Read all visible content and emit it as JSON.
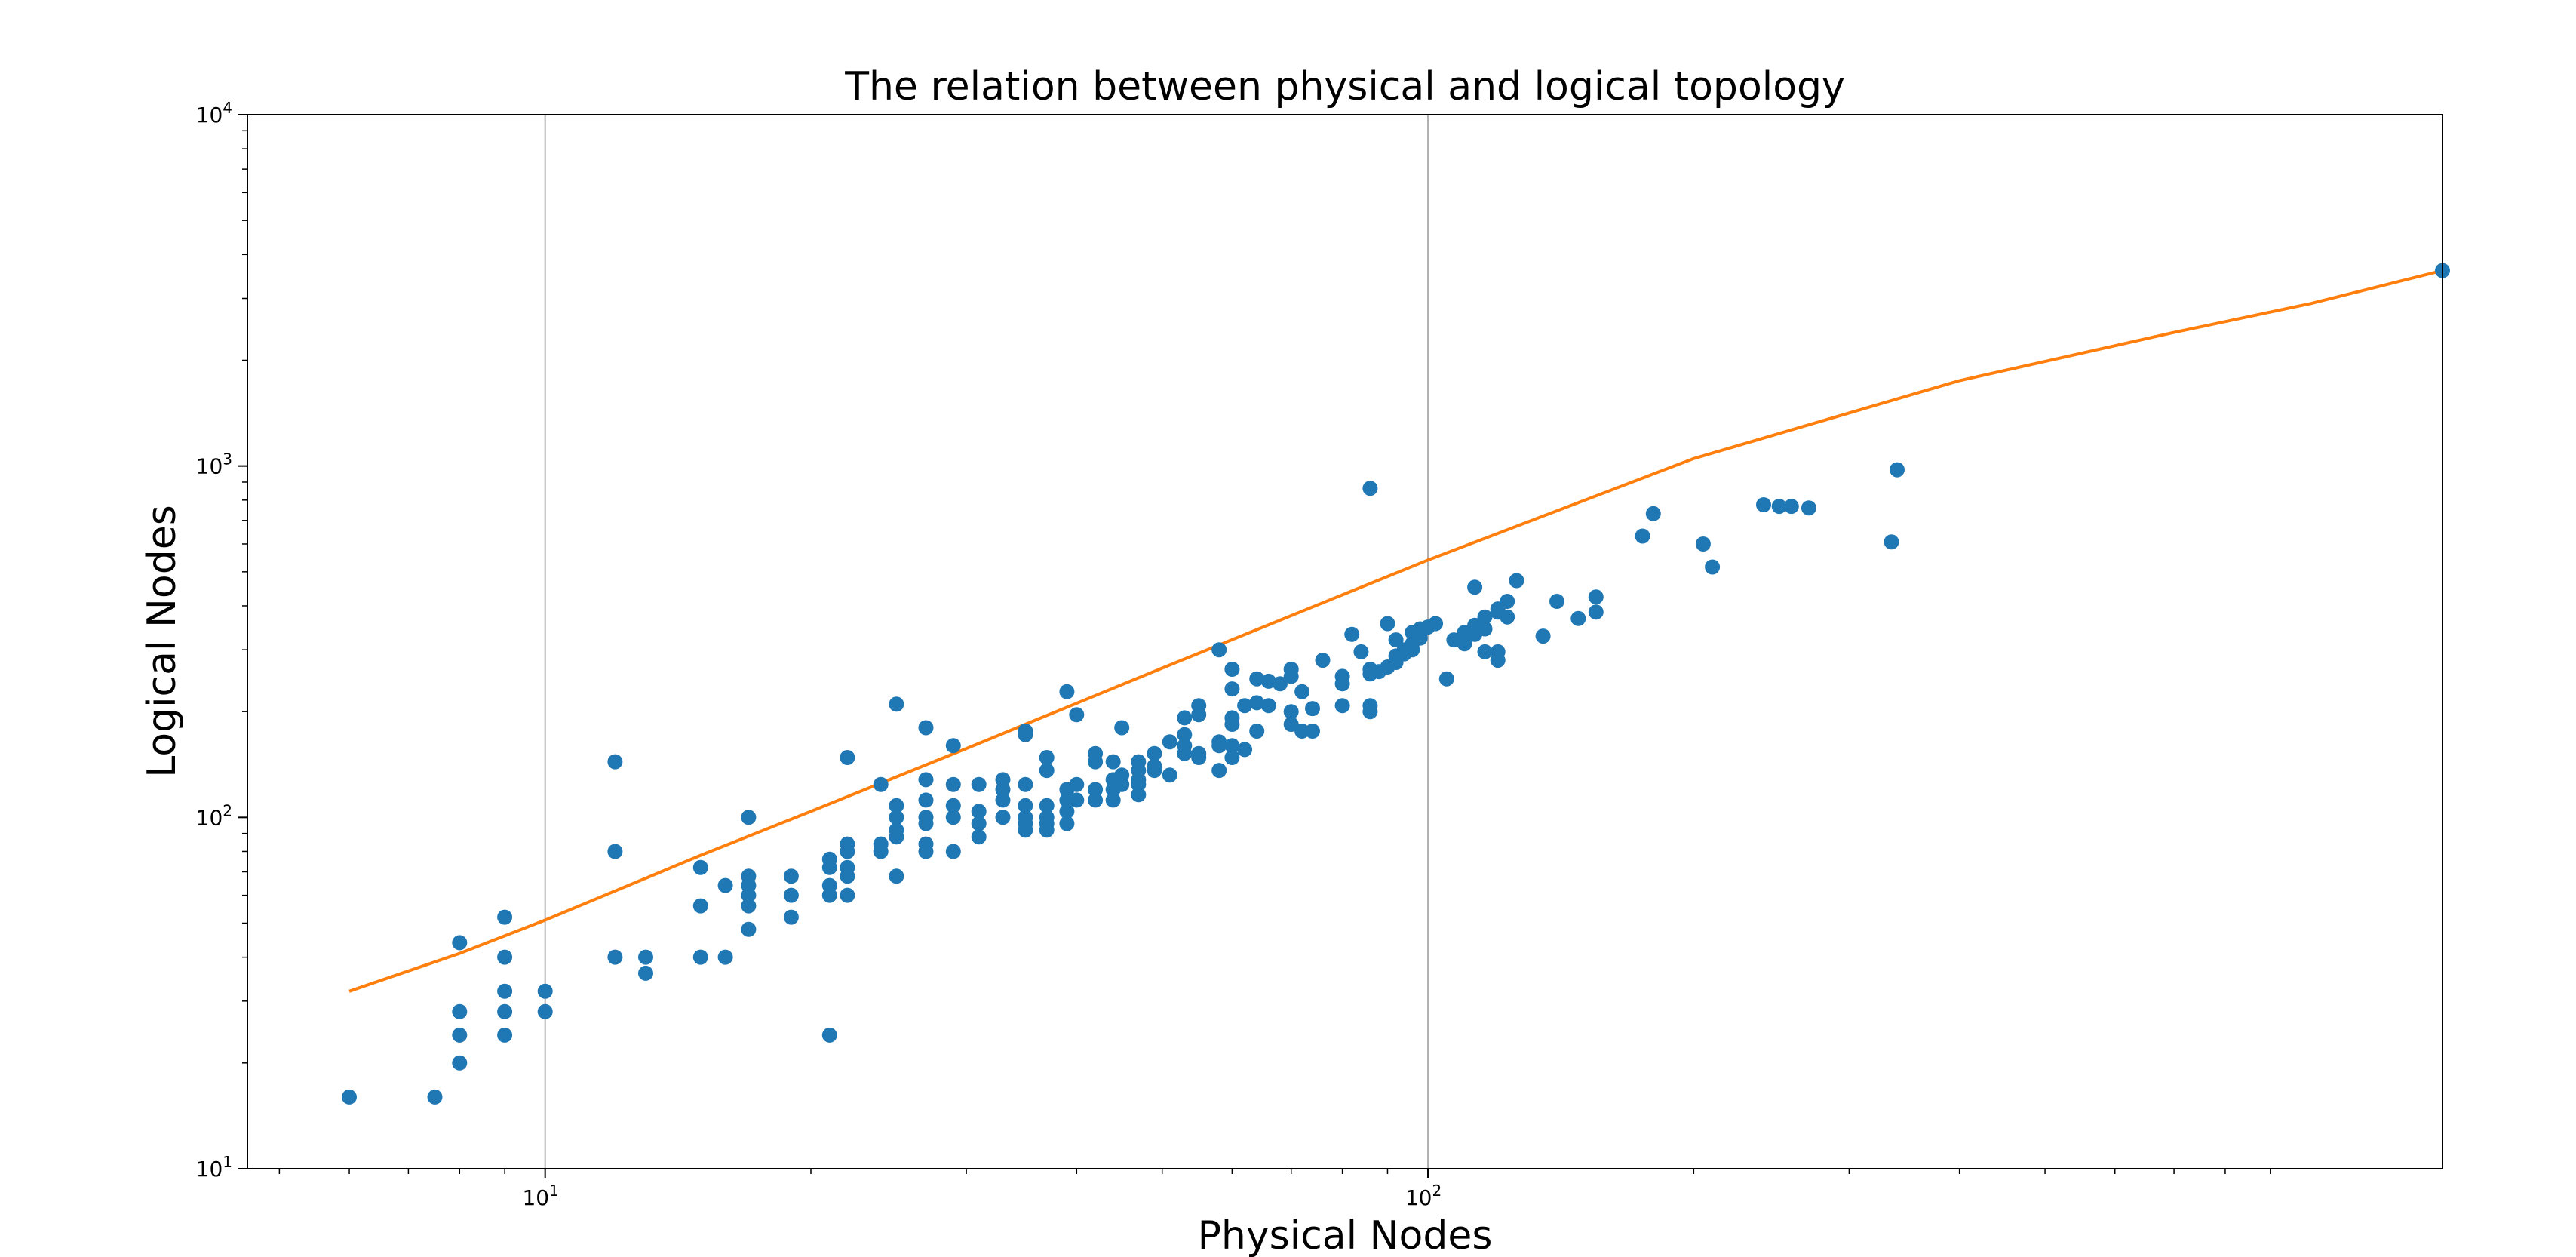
{
  "chart_data": {
    "type": "scatter",
    "title": "The relation between physical and logical topology",
    "xlabel": "Physical Nodes",
    "ylabel": "Logical Nodes",
    "xscale": "log",
    "yscale": "log",
    "xlim": [
      4.6,
      1410
    ],
    "ylim": [
      10,
      10000
    ],
    "x_ticks": [
      {
        "value": 10,
        "base": "10",
        "exp": "1"
      },
      {
        "value": 100,
        "base": "10",
        "exp": "2"
      }
    ],
    "y_ticks": [
      {
        "value": 10,
        "base": "10",
        "exp": "1"
      },
      {
        "value": 100,
        "base": "10",
        "exp": "2"
      },
      {
        "value": 1000,
        "base": "10",
        "exp": "3"
      },
      {
        "value": 10000,
        "base": "10",
        "exp": "4"
      }
    ],
    "grid": "x-major",
    "colors": {
      "points": "#1f77b4",
      "fit": "#ff7f0e"
    },
    "series": [
      {
        "type": "scatter",
        "points": [
          [
            6,
            16
          ],
          [
            7.5,
            16
          ],
          [
            8,
            44
          ],
          [
            8,
            28
          ],
          [
            8,
            24
          ],
          [
            8,
            20
          ],
          [
            9,
            52
          ],
          [
            9,
            40
          ],
          [
            9,
            32
          ],
          [
            9,
            28
          ],
          [
            9,
            24
          ],
          [
            10,
            32
          ],
          [
            10,
            28
          ],
          [
            12,
            144
          ],
          [
            12,
            80
          ],
          [
            12,
            40
          ],
          [
            13,
            40
          ],
          [
            13,
            36
          ],
          [
            15,
            72
          ],
          [
            15,
            56
          ],
          [
            15,
            40
          ],
          [
            16,
            64
          ],
          [
            16,
            40
          ],
          [
            17,
            100
          ],
          [
            17,
            68
          ],
          [
            17,
            64
          ],
          [
            17,
            60
          ],
          [
            17,
            56
          ],
          [
            17,
            48
          ],
          [
            19,
            68
          ],
          [
            19,
            60
          ],
          [
            19,
            52
          ],
          [
            21,
            76
          ],
          [
            21,
            72
          ],
          [
            21,
            64
          ],
          [
            21,
            60
          ],
          [
            21,
            24
          ],
          [
            22,
            148
          ],
          [
            22,
            84
          ],
          [
            22,
            80
          ],
          [
            22,
            72
          ],
          [
            22,
            68
          ],
          [
            22,
            60
          ],
          [
            24,
            124
          ],
          [
            24,
            84
          ],
          [
            24,
            80
          ],
          [
            25,
            210
          ],
          [
            25,
            108
          ],
          [
            25,
            100
          ],
          [
            25,
            92
          ],
          [
            25,
            88
          ],
          [
            25,
            68
          ],
          [
            27,
            180
          ],
          [
            27,
            128
          ],
          [
            27,
            112
          ],
          [
            27,
            100
          ],
          [
            27,
            96
          ],
          [
            27,
            84
          ],
          [
            27,
            80
          ],
          [
            29,
            160
          ],
          [
            29,
            124
          ],
          [
            29,
            108
          ],
          [
            29,
            100
          ],
          [
            29,
            80
          ],
          [
            31,
            124
          ],
          [
            31,
            104
          ],
          [
            31,
            96
          ],
          [
            31,
            88
          ],
          [
            33,
            128
          ],
          [
            33,
            120
          ],
          [
            33,
            112
          ],
          [
            33,
            100
          ],
          [
            35,
            176
          ],
          [
            35,
            172
          ],
          [
            35,
            124
          ],
          [
            35,
            108
          ],
          [
            35,
            100
          ],
          [
            35,
            96
          ],
          [
            35,
            92
          ],
          [
            37,
            148
          ],
          [
            37,
            136
          ],
          [
            37,
            108
          ],
          [
            37,
            100
          ],
          [
            37,
            96
          ],
          [
            37,
            92
          ],
          [
            39,
            228
          ],
          [
            39,
            120
          ],
          [
            39,
            112
          ],
          [
            39,
            104
          ],
          [
            39,
            96
          ],
          [
            40,
            196
          ],
          [
            40,
            124
          ],
          [
            40,
            112
          ],
          [
            42,
            152
          ],
          [
            42,
            144
          ],
          [
            42,
            120
          ],
          [
            42,
            112
          ],
          [
            44,
            144
          ],
          [
            44,
            128
          ],
          [
            44,
            120
          ],
          [
            44,
            112
          ],
          [
            45,
            180
          ],
          [
            45,
            132
          ],
          [
            45,
            124
          ],
          [
            47,
            144
          ],
          [
            47,
            136
          ],
          [
            47,
            128
          ],
          [
            47,
            124
          ],
          [
            47,
            116
          ],
          [
            49,
            152
          ],
          [
            49,
            140
          ],
          [
            49,
            136
          ],
          [
            51,
            164
          ],
          [
            51,
            132
          ],
          [
            53,
            192
          ],
          [
            53,
            172
          ],
          [
            53,
            160
          ],
          [
            53,
            152
          ],
          [
            55,
            208
          ],
          [
            55,
            196
          ],
          [
            55,
            152
          ],
          [
            55,
            148
          ],
          [
            58,
            300
          ],
          [
            58,
            164
          ],
          [
            58,
            160
          ],
          [
            58,
            136
          ],
          [
            60,
            264
          ],
          [
            60,
            232
          ],
          [
            60,
            192
          ],
          [
            60,
            184
          ],
          [
            60,
            160
          ],
          [
            60,
            148
          ],
          [
            62,
            208
          ],
          [
            62,
            156
          ],
          [
            64,
            248
          ],
          [
            64,
            212
          ],
          [
            64,
            176
          ],
          [
            66,
            244
          ],
          [
            66,
            208
          ],
          [
            68,
            240
          ],
          [
            70,
            264
          ],
          [
            70,
            252
          ],
          [
            70,
            200
          ],
          [
            70,
            184
          ],
          [
            72,
            228
          ],
          [
            72,
            176
          ],
          [
            74,
            176
          ],
          [
            74,
            204
          ],
          [
            76,
            280
          ],
          [
            80,
            252
          ],
          [
            80,
            240
          ],
          [
            80,
            208
          ],
          [
            82,
            332
          ],
          [
            84,
            296
          ],
          [
            86,
            864
          ],
          [
            86,
            264
          ],
          [
            86,
            256
          ],
          [
            86,
            208
          ],
          [
            86,
            200
          ],
          [
            88,
            260
          ],
          [
            90,
            356
          ],
          [
            90,
            268
          ],
          [
            92,
            320
          ],
          [
            92,
            288
          ],
          [
            92,
            276
          ],
          [
            94,
            300
          ],
          [
            94,
            292
          ],
          [
            96,
            336
          ],
          [
            96,
            312
          ],
          [
            96,
            300
          ],
          [
            98,
            344
          ],
          [
            98,
            324
          ],
          [
            100,
            348
          ],
          [
            102,
            356
          ],
          [
            105,
            248
          ],
          [
            107,
            320
          ],
          [
            110,
            312
          ],
          [
            110,
            320
          ],
          [
            110,
            336
          ],
          [
            113,
            452
          ],
          [
            113,
            352
          ],
          [
            113,
            332
          ],
          [
            116,
            372
          ],
          [
            116,
            296
          ],
          [
            116,
            344
          ],
          [
            120,
            392
          ],
          [
            120,
            384
          ],
          [
            120,
            296
          ],
          [
            120,
            280
          ],
          [
            123,
            412
          ],
          [
            123,
            372
          ],
          [
            126,
            472
          ],
          [
            135,
            328
          ],
          [
            140,
            412
          ],
          [
            148,
            368
          ],
          [
            155,
            424
          ],
          [
            155,
            384
          ],
          [
            175,
            632
          ],
          [
            180,
            732
          ],
          [
            205,
            600
          ],
          [
            210,
            516
          ],
          [
            240,
            776
          ],
          [
            250,
            768
          ],
          [
            258,
            768
          ],
          [
            270,
            760
          ],
          [
            335,
            608
          ],
          [
            340,
            976
          ],
          [
            1410,
            3600
          ]
        ]
      },
      {
        "type": "line",
        "fit": [
          [
            6,
            32
          ],
          [
            8,
            41
          ],
          [
            10,
            51
          ],
          [
            15,
            78
          ],
          [
            20,
            104
          ],
          [
            30,
            157
          ],
          [
            50,
            266
          ],
          [
            100,
            540
          ],
          [
            200,
            1050
          ],
          [
            400,
            1750
          ],
          [
            700,
            2400
          ],
          [
            1000,
            2900
          ],
          [
            1410,
            3600
          ]
        ]
      }
    ]
  }
}
